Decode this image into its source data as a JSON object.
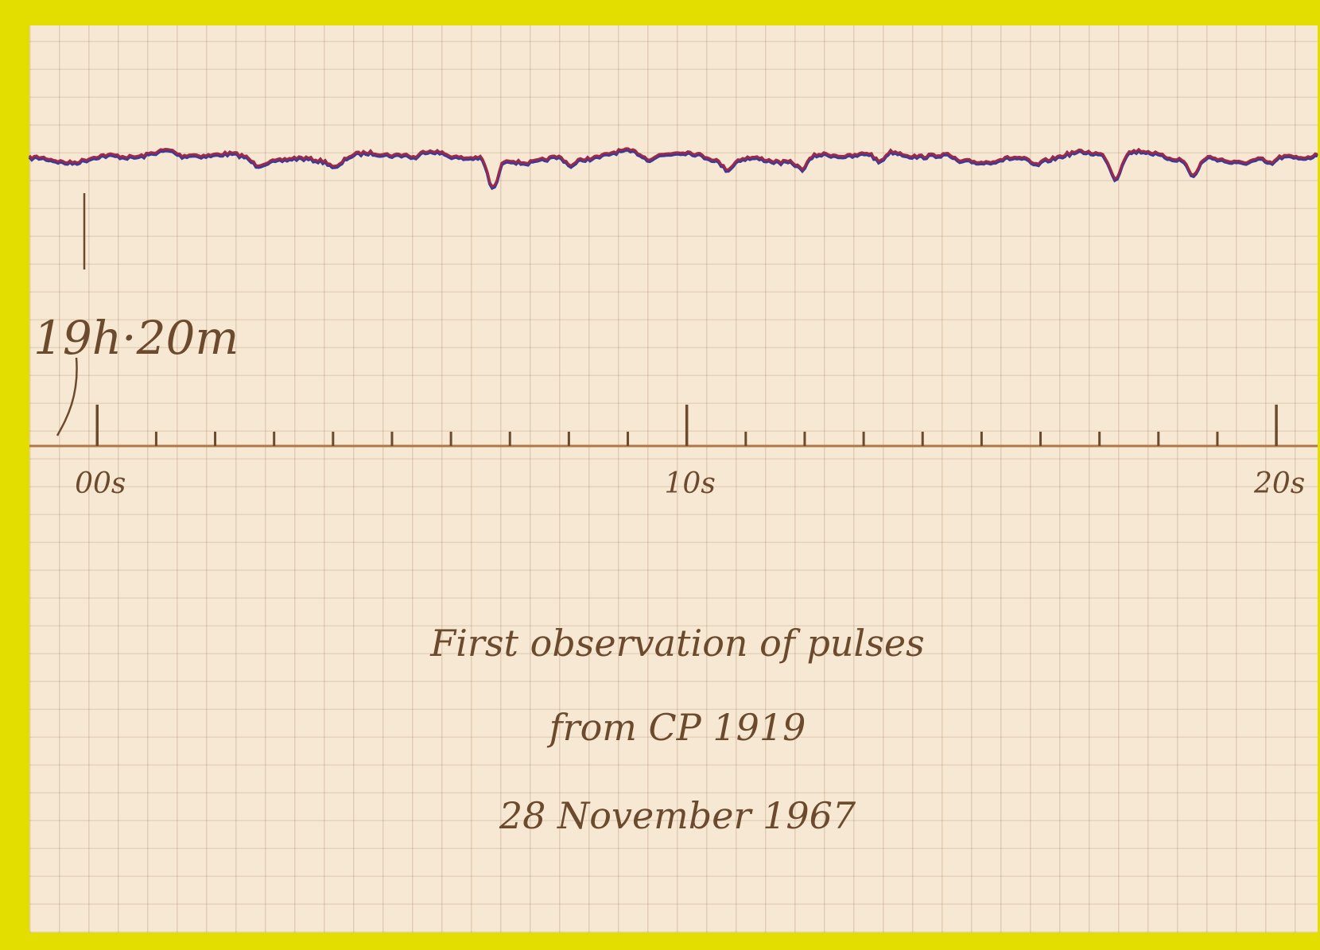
{
  "recording": {
    "time_label": "19h·20m",
    "xlim": [
      -1.15,
      20.7
    ],
    "xticks": [
      {
        "value": 0,
        "label": "00s"
      },
      {
        "value": 10,
        "label": "10s"
      },
      {
        "value": 20,
        "label": "20s"
      }
    ],
    "minor_xticks": [
      1,
      2,
      3,
      4,
      5,
      6,
      7,
      8,
      9,
      11,
      12,
      13,
      14,
      15,
      16,
      17,
      18,
      19
    ]
  },
  "caption": {
    "lines": [
      "First observation of pulses",
      "from CP 1919",
      "28 November 1967"
    ]
  }
}
